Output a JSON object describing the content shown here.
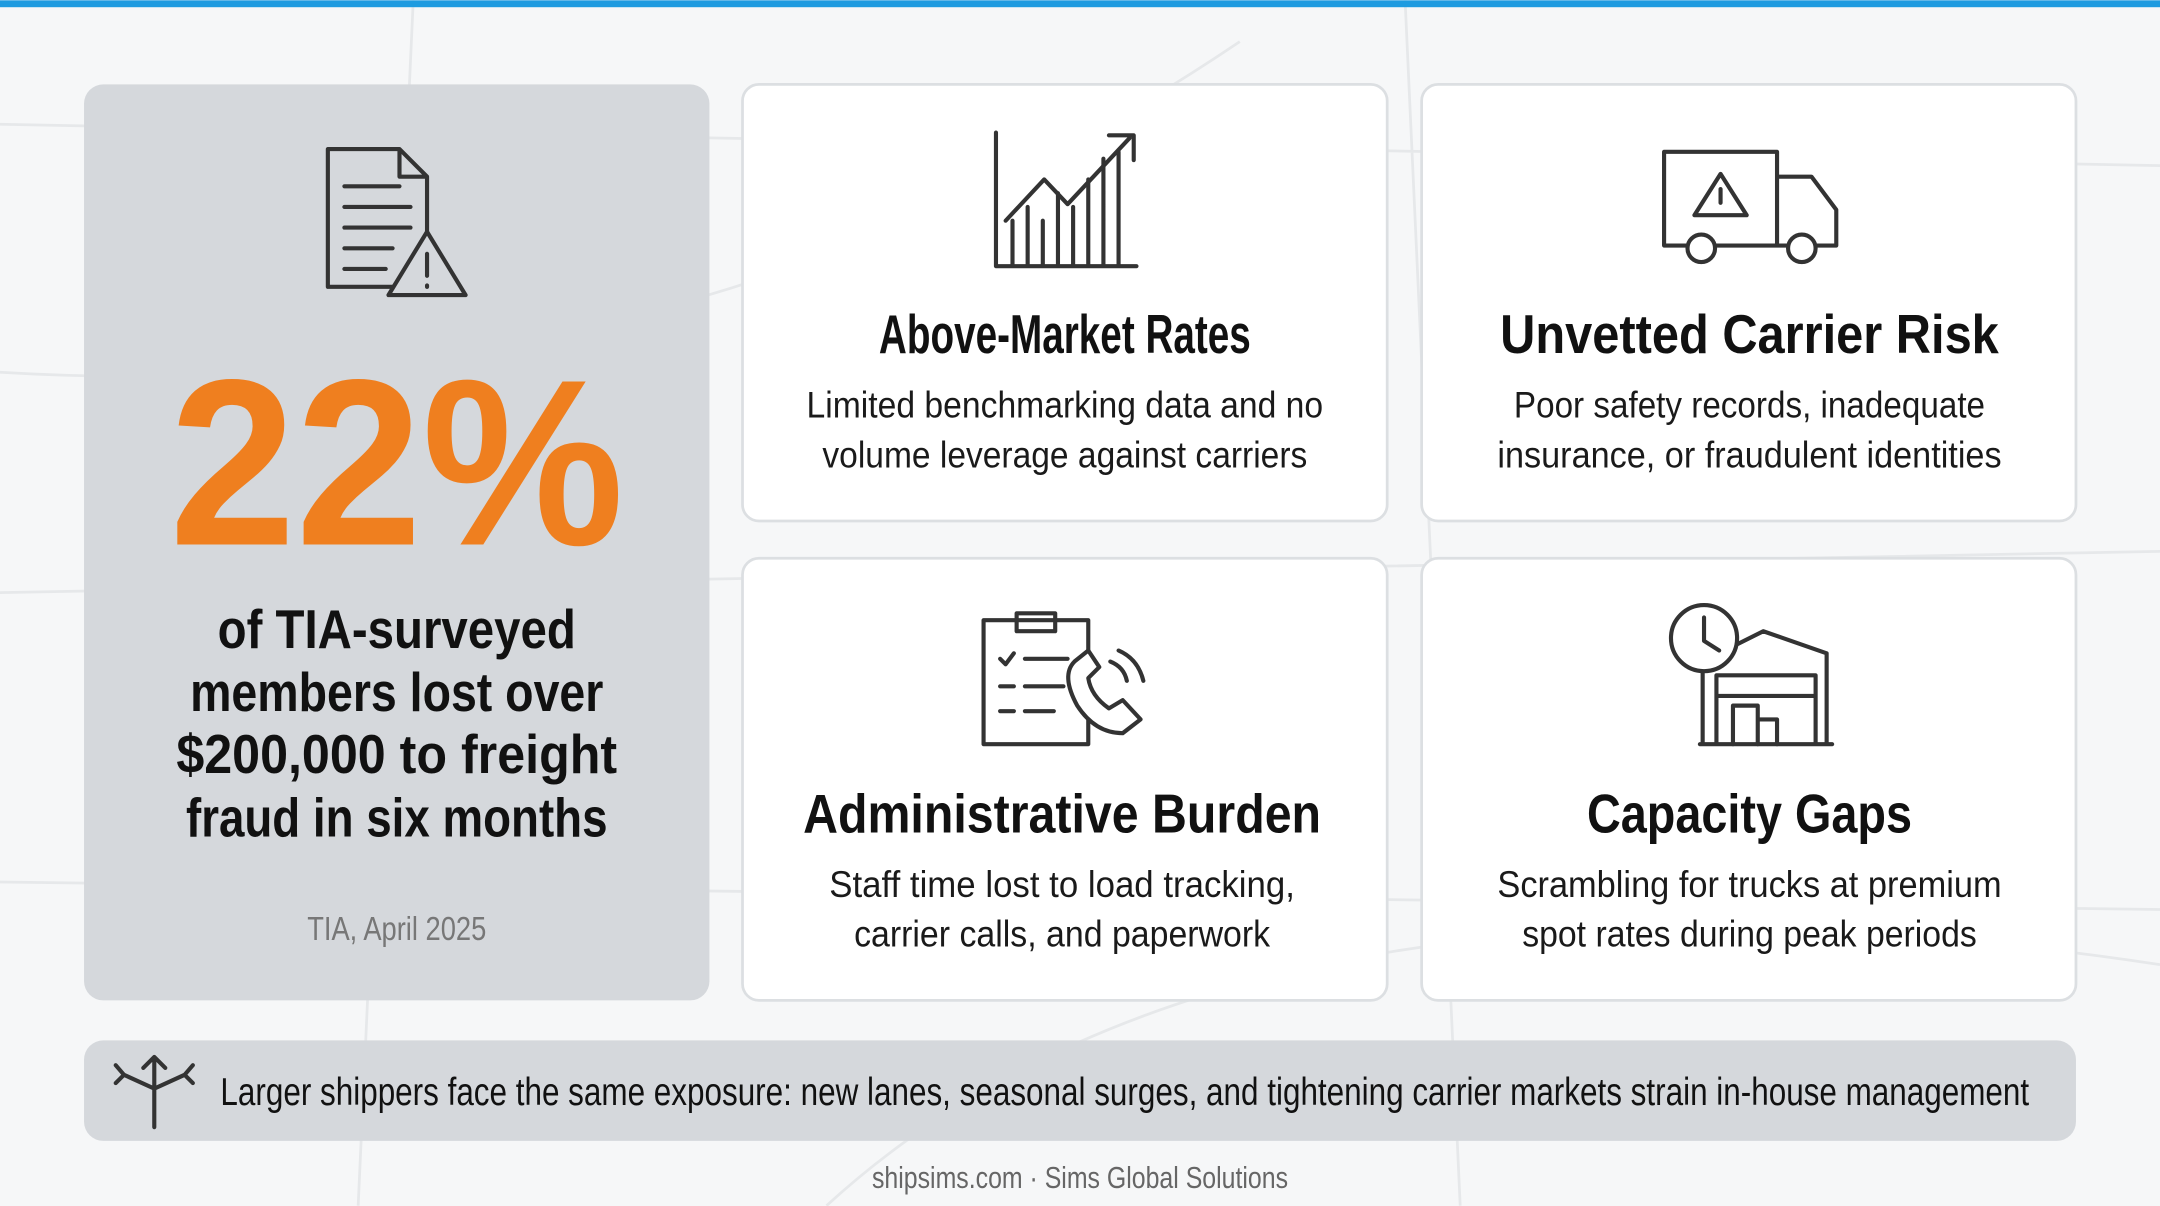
{
  "stat": {
    "value": "22%",
    "description": [
      "of TIA-surveyed",
      "members lost over",
      "$200,000 to freight",
      "fraud in six months"
    ],
    "source": "TIA, April 2025"
  },
  "cards": [
    {
      "title": "Above-Market Rates",
      "description": [
        "Limited benchmarking data and no",
        "volume leverage against carriers"
      ]
    },
    {
      "title": "Unvetted Carrier Risk",
      "description": [
        "Poor safety records, inadequate",
        "insurance, or fraudulent identities"
      ]
    },
    {
      "title": "Administrative Burden",
      "description": [
        "Staff time lost to load tracking,",
        "carrier calls, and paperwork"
      ]
    },
    {
      "title": "Capacity Gaps",
      "description": [
        "Scrambling for trucks at premium",
        "spot rates during peak periods"
      ]
    }
  ],
  "banner": {
    "text": "Larger shippers face the same exposure: new lanes, seasonal surges, and tightening carrier markets strain in-house management"
  },
  "footer": {
    "credit": "shipsims.com · Sims Global Solutions"
  }
}
